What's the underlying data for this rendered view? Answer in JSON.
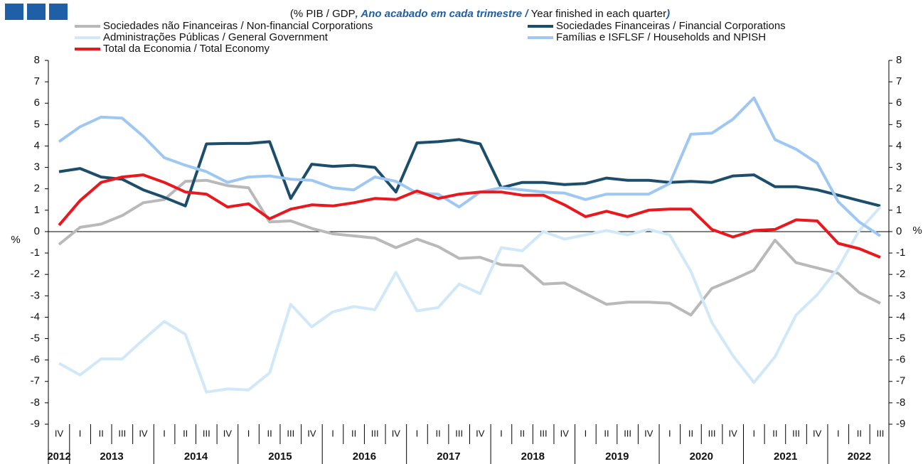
{
  "chart_data": {
    "type": "line",
    "subtitle": [
      "(% PIB / ",
      "GDP",
      ", Ano acabado em cada trimestre / ",
      "Year finished in each quarter",
      ")"
    ],
    "ylabel": "%",
    "y2label": "%",
    "categories": [
      "IV",
      "I",
      "II",
      "III",
      "IV",
      "I",
      "II",
      "III",
      "IV",
      "I",
      "II",
      "III",
      "IV",
      "I",
      "II",
      "III",
      "IV",
      "I",
      "II",
      "III",
      "IV",
      "I",
      "II",
      "III",
      "IV",
      "I",
      "II",
      "III",
      "IV",
      "I",
      "II",
      "III",
      "IV",
      "I",
      "II",
      "III",
      "IV",
      "I",
      "II",
      "III"
    ],
    "years": [
      "2012",
      "2013",
      "2014",
      "2015",
      "2016",
      "2017",
      "2018",
      "2019",
      "2020",
      "2021",
      "2022"
    ],
    "ylim": [
      -9,
      8
    ],
    "yticks": [
      -9,
      -8,
      -7,
      -6,
      -5,
      -4,
      -3,
      -2,
      -1,
      0,
      1,
      2,
      3,
      4,
      5,
      6,
      7,
      8
    ],
    "y2lim": [
      -9,
      8
    ],
    "y2ticks": [
      -9,
      -8,
      -7,
      -6,
      -5,
      -4,
      -3,
      -2,
      -1,
      0,
      1,
      2,
      3,
      4,
      5,
      6,
      7,
      8
    ],
    "series": [
      {
        "name": "Sociedades não Financeiras / Non-financial Corporations",
        "color": "#b9b9b9",
        "values": [
          -0.6,
          0.2,
          0.35,
          0.75,
          1.35,
          1.5,
          2.35,
          2.4,
          2.15,
          2.05,
          0.45,
          0.5,
          0.15,
          -0.1,
          -0.2,
          -0.3,
          -0.75,
          -0.35,
          -0.7,
          -1.25,
          -1.2,
          -1.55,
          -1.6,
          -2.45,
          -2.4,
          -2.9,
          -3.4,
          -3.3,
          -3.3,
          -3.35,
          -3.9,
          -2.65,
          -2.25,
          -1.8,
          -0.4,
          -1.45,
          -1.7,
          -1.95,
          -2.85,
          -3.35
        ]
      },
      {
        "name": "Sociedades Financeiras / Financial Corporations",
        "color": "#1c4e6b",
        "values": [
          2.8,
          2.95,
          2.55,
          2.45,
          1.95,
          1.6,
          1.2,
          4.1,
          4.12,
          4.12,
          4.2,
          1.55,
          3.15,
          3.05,
          3.1,
          3.0,
          1.85,
          4.15,
          4.2,
          4.3,
          4.1,
          2.05,
          2.3,
          2.3,
          2.2,
          2.25,
          2.5,
          2.4,
          2.4,
          2.3,
          2.35,
          2.3,
          2.6,
          2.65,
          2.1,
          2.1,
          1.95,
          1.7,
          1.45,
          1.2
        ]
      },
      {
        "name": "Administrações Públicas / General Government",
        "color": "#d0e8f8",
        "values": [
          -6.15,
          -6.7,
          -5.95,
          -5.95,
          -5.05,
          -4.2,
          -4.8,
          -7.5,
          -7.35,
          -7.4,
          -6.6,
          -3.4,
          -4.45,
          -3.75,
          -3.5,
          -3.65,
          -1.9,
          -3.7,
          -3.55,
          -2.45,
          -2.9,
          -0.75,
          -0.9,
          0.0,
          -0.35,
          -0.15,
          0.05,
          -0.15,
          0.1,
          -0.15,
          -1.85,
          -4.25,
          -5.8,
          -7.05,
          -5.85,
          -3.9,
          -2.95,
          -1.7,
          0.05,
          1.15
        ]
      },
      {
        "name": "Famílias e ISFLSF / Households and NPISH",
        "color": "#9ec8f2",
        "values": [
          4.2,
          4.9,
          5.35,
          5.3,
          4.45,
          3.45,
          3.1,
          2.8,
          2.3,
          2.55,
          2.6,
          2.45,
          2.4,
          2.05,
          1.95,
          2.55,
          2.35,
          1.8,
          1.75,
          1.15,
          1.85,
          2.05,
          1.95,
          1.85,
          1.8,
          1.5,
          1.75,
          1.75,
          1.75,
          2.25,
          4.55,
          4.6,
          5.25,
          6.25,
          4.3,
          3.85,
          3.2,
          1.4,
          0.45,
          -0.2
        ]
      },
      {
        "name": "Total da Economia / Total Economy",
        "color": "#e8181e",
        "values": [
          0.3,
          1.45,
          2.3,
          2.55,
          2.65,
          2.3,
          1.85,
          1.75,
          1.15,
          1.3,
          0.6,
          1.05,
          1.25,
          1.2,
          1.35,
          1.55,
          1.5,
          1.9,
          1.55,
          1.75,
          1.85,
          1.85,
          1.7,
          1.7,
          1.25,
          0.7,
          0.95,
          0.7,
          1.0,
          1.05,
          1.05,
          0.1,
          -0.25,
          0.05,
          0.1,
          0.55,
          0.5,
          -0.55,
          -0.8,
          -1.2
        ]
      }
    ]
  }
}
